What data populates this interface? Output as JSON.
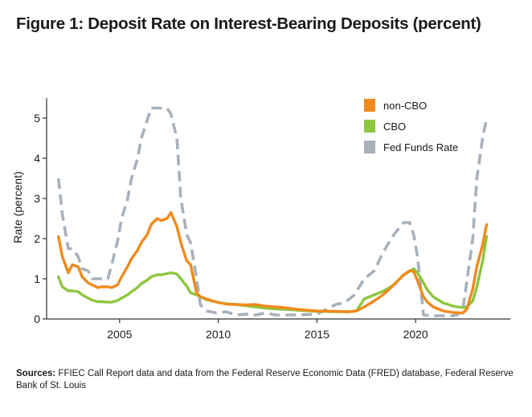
{
  "title": "Figure 1: Deposit Rate on Interest-Bearing Deposits (percent)",
  "source_label": "Sources:",
  "source_text": "FFIEC Call Report data and data from the Federal Reserve Economic Data (FRED) database, Federal Reserve Bank of St. Louis",
  "colors": {
    "noncbo": "#F08A1D",
    "cbo": "#8DC63F",
    "fedfunds": "#A7B1BC",
    "axis": "#333333"
  },
  "chart_data": {
    "type": "line",
    "title": "Figure 1: Deposit Rate on Interest-Bearing Deposits (percent)",
    "xlabel": "",
    "ylabel": "Rate (percent)",
    "xlim": [
      2001.3,
      2024.8
    ],
    "ylim": [
      0,
      5.5
    ],
    "xticks": [
      2005,
      2010,
      2015,
      2020
    ],
    "xtick_labels": [
      "2005",
      "2010",
      "2015",
      "2020"
    ],
    "yticks": [
      0,
      1,
      2,
      3,
      4,
      5
    ],
    "ytick_labels": [
      "0",
      "1",
      "2",
      "3",
      "4",
      "5"
    ],
    "grid": false,
    "legend_position": "top-right",
    "series": [
      {
        "name": "non-CBO",
        "style": "solid",
        "x": [
          2001.9,
          2002.1,
          2002.4,
          2002.6,
          2002.9,
          2003.1,
          2003.4,
          2003.6,
          2003.9,
          2004.1,
          2004.4,
          2004.6,
          2004.9,
          2005.1,
          2005.4,
          2005.6,
          2005.9,
          2006.1,
          2006.4,
          2006.6,
          2006.9,
          2007.1,
          2007.4,
          2007.6,
          2007.9,
          2008.1,
          2008.4,
          2008.6,
          2008.9,
          2009.1,
          2009.4,
          2009.9,
          2010.4,
          2010.9,
          2011.4,
          2011.9,
          2012.4,
          2012.9,
          2013.4,
          2014,
          2015,
          2016,
          2016.6,
          2017,
          2017.4,
          2017.9,
          2018.4,
          2018.9,
          2019.4,
          2019.7,
          2019.9,
          2020.1,
          2020.4,
          2020.6,
          2020.9,
          2021.4,
          2021.9,
          2022.4,
          2022.6,
          2022.9,
          2023.1,
          2023.4,
          2023.6
        ],
        "values": [
          2.05,
          1.55,
          1.15,
          1.35,
          1.3,
          1.05,
          0.9,
          0.85,
          0.78,
          0.8,
          0.8,
          0.78,
          0.85,
          1.05,
          1.3,
          1.5,
          1.7,
          1.9,
          2.1,
          2.35,
          2.5,
          2.45,
          2.5,
          2.65,
          2.3,
          1.9,
          1.45,
          1.35,
          0.65,
          0.55,
          0.5,
          0.42,
          0.37,
          0.36,
          0.35,
          0.36,
          0.32,
          0.3,
          0.28,
          0.24,
          0.2,
          0.19,
          0.18,
          0.2,
          0.3,
          0.45,
          0.62,
          0.85,
          1.1,
          1.2,
          1.18,
          0.95,
          0.55,
          0.42,
          0.3,
          0.2,
          0.16,
          0.15,
          0.25,
          0.75,
          1.3,
          1.85,
          2.35
        ]
      },
      {
        "name": "CBO",
        "style": "solid",
        "x": [
          2001.9,
          2002.1,
          2002.4,
          2002.6,
          2002.9,
          2003.1,
          2003.4,
          2003.6,
          2003.9,
          2004.1,
          2004.4,
          2004.6,
          2004.9,
          2005.1,
          2005.4,
          2005.6,
          2005.9,
          2006.1,
          2006.4,
          2006.6,
          2006.9,
          2007.1,
          2007.4,
          2007.6,
          2007.9,
          2008.1,
          2008.4,
          2008.6,
          2008.9,
          2009.1,
          2009.4,
          2009.9,
          2010.4,
          2010.9,
          2011.4,
          2011.9,
          2012.4,
          2012.9,
          2013.4,
          2014,
          2015,
          2016,
          2016.6,
          2017,
          2017.4,
          2017.9,
          2018.4,
          2018.9,
          2019.4,
          2019.9,
          2020.1,
          2020.4,
          2020.6,
          2020.9,
          2021.4,
          2021.9,
          2022.4,
          2022.6,
          2022.9,
          2023.1,
          2023.4,
          2023.6
        ],
        "values": [
          1.05,
          0.8,
          0.7,
          0.7,
          0.68,
          0.6,
          0.52,
          0.47,
          0.43,
          0.43,
          0.42,
          0.42,
          0.46,
          0.52,
          0.6,
          0.68,
          0.78,
          0.88,
          0.97,
          1.05,
          1.1,
          1.1,
          1.13,
          1.15,
          1.12,
          1.0,
          0.82,
          0.65,
          0.6,
          0.55,
          0.48,
          0.42,
          0.38,
          0.36,
          0.33,
          0.3,
          0.27,
          0.25,
          0.24,
          0.22,
          0.19,
          0.18,
          0.18,
          0.2,
          0.5,
          0.6,
          0.7,
          0.85,
          1.1,
          1.25,
          1.15,
          0.9,
          0.72,
          0.55,
          0.4,
          0.32,
          0.28,
          0.3,
          0.45,
          0.8,
          1.45,
          2.05
        ]
      },
      {
        "name": "Fed Funds Rate",
        "style": "dashed",
        "x": [
          2001.9,
          2002.1,
          2002.4,
          2002.6,
          2002.9,
          2003.1,
          2003.4,
          2003.6,
          2003.9,
          2004.1,
          2004.4,
          2004.6,
          2004.9,
          2005.1,
          2005.4,
          2005.6,
          2005.9,
          2006.1,
          2006.4,
          2006.6,
          2006.9,
          2007.1,
          2007.4,
          2007.6,
          2007.9,
          2008.1,
          2008.4,
          2008.6,
          2008.9,
          2009.1,
          2009.4,
          2009.9,
          2010.4,
          2010.9,
          2011.4,
          2011.9,
          2012.4,
          2012.9,
          2013.4,
          2014,
          2015,
          2016,
          2016.4,
          2016.9,
          2017.4,
          2017.9,
          2018.4,
          2018.9,
          2019.4,
          2019.7,
          2019.9,
          2020.1,
          2020.4,
          2020.9,
          2021.4,
          2021.9,
          2022.1,
          2022.4,
          2022.6,
          2022.9,
          2023.1,
          2023.4,
          2023.6
        ],
        "values": [
          3.5,
          2.6,
          1.75,
          1.75,
          1.55,
          1.25,
          1.2,
          1.0,
          1.0,
          1.0,
          1.0,
          1.35,
          1.95,
          2.5,
          2.98,
          3.5,
          3.98,
          4.5,
          4.95,
          5.25,
          5.25,
          5.25,
          5.25,
          5.1,
          4.5,
          3.0,
          2.1,
          1.9,
          1.0,
          0.35,
          0.2,
          0.15,
          0.18,
          0.1,
          0.12,
          0.1,
          0.15,
          0.1,
          0.1,
          0.1,
          0.12,
          0.37,
          0.4,
          0.6,
          1.0,
          1.2,
          1.7,
          2.1,
          2.4,
          2.4,
          2.1,
          1.55,
          0.1,
          0.08,
          0.08,
          0.08,
          0.1,
          0.25,
          0.95,
          2.0,
          3.5,
          4.5,
          5.0
        ]
      }
    ]
  }
}
